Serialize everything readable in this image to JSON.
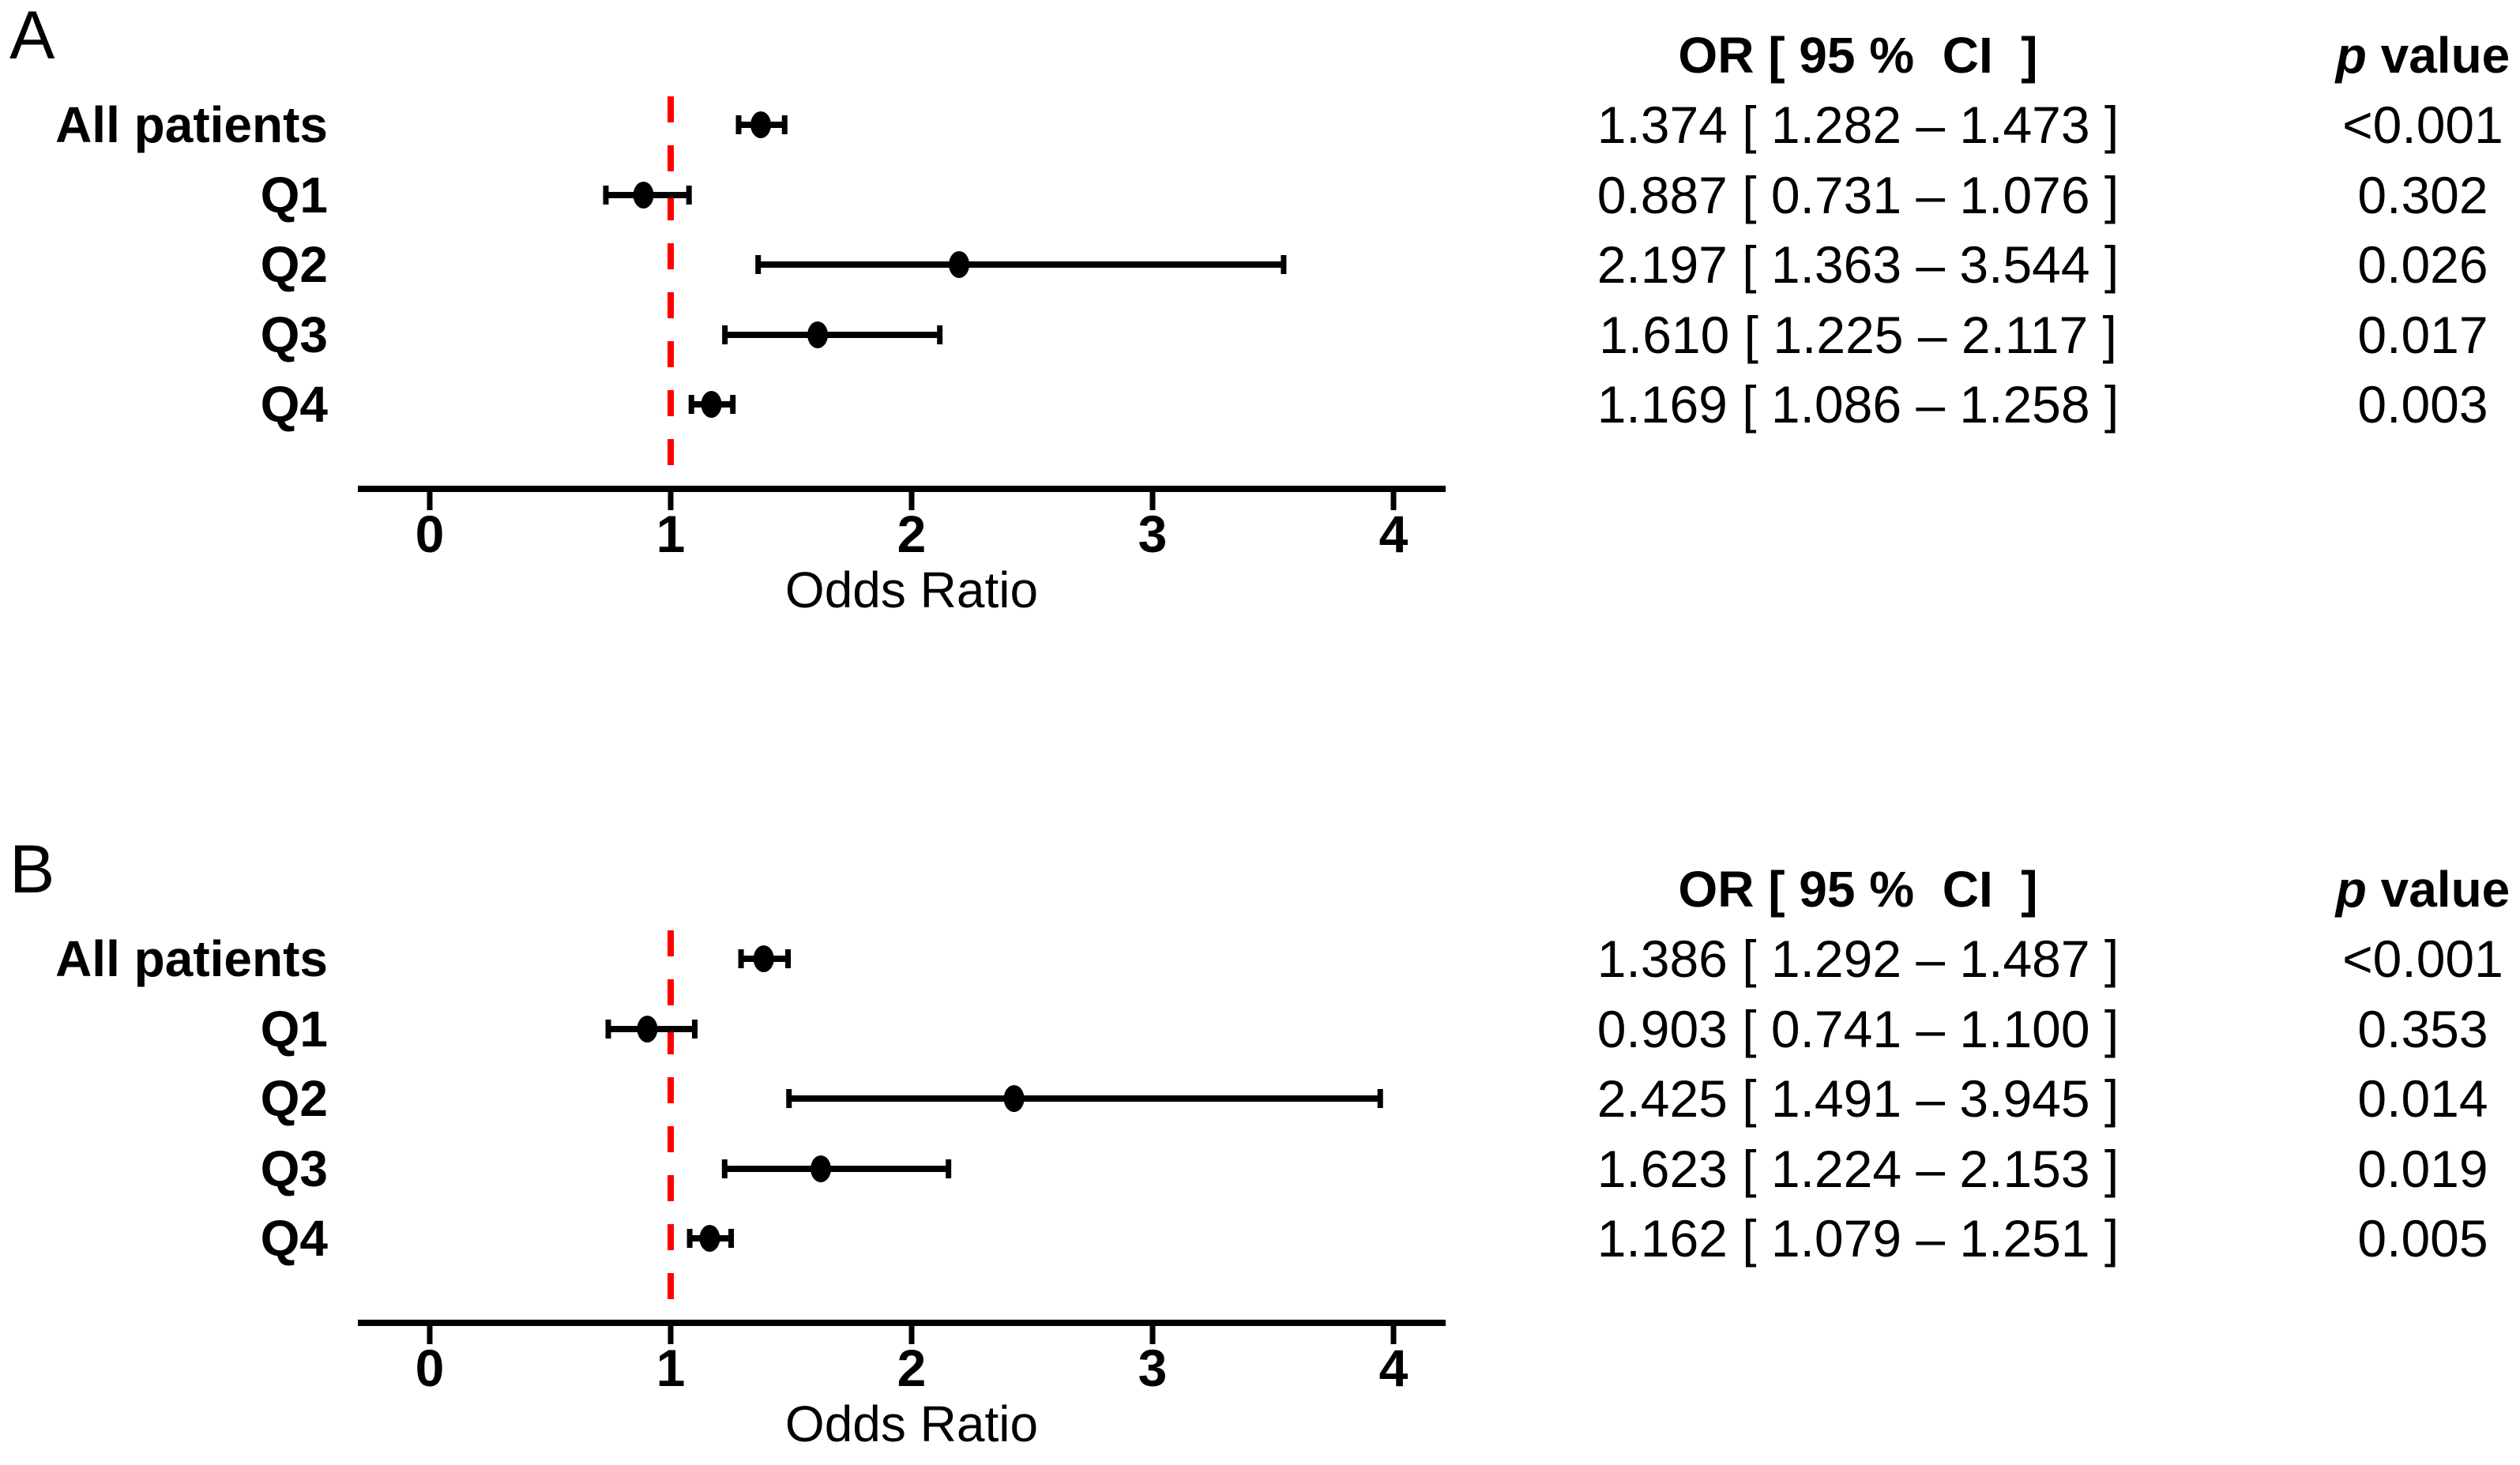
{
  "figure_title": "",
  "chart_data": [
    {
      "type": "forest",
      "panel_label": "A",
      "xlabel": "Odds Ratio",
      "xticks": [
        0,
        1,
        2,
        3,
        4
      ],
      "xlim": [
        -0.3,
        4.22
      ],
      "grid": false,
      "ref_line_x": 1,
      "ref_line_color": "#ff0000",
      "marker_color": "#000000",
      "col_header_or": "OR [ 95 %  CI  ]",
      "col_header_p_italic": "p",
      "col_header_p_rest": " value",
      "categories": [
        "All patients",
        "Q1",
        "Q2",
        "Q3",
        "Q4"
      ],
      "series": [
        {
          "name": "OR",
          "values": [
            1.374,
            0.887,
            2.197,
            1.61,
            1.169
          ]
        },
        {
          "name": "CI low",
          "values": [
            1.282,
            0.731,
            1.363,
            1.225,
            1.086
          ]
        },
        {
          "name": "CI high",
          "values": [
            1.473,
            1.076,
            3.544,
            2.117,
            1.258
          ]
        }
      ],
      "or_ci_text": [
        "1.374 [ 1.282 – 1.473 ]",
        "0.887 [ 0.731 – 1.076 ]",
        "2.197 [ 1.363 – 3.544 ]",
        "1.610 [ 1.225 – 2.117 ]",
        "1.169 [ 1.086 – 1.258 ]"
      ],
      "p_values": [
        "<0.001",
        "0.302",
        "0.026",
        "0.017",
        "0.003"
      ]
    },
    {
      "type": "forest",
      "panel_label": "B",
      "xlabel": "Odds Ratio",
      "xticks": [
        0,
        1,
        2,
        3,
        4
      ],
      "xlim": [
        -0.3,
        4.22
      ],
      "grid": false,
      "ref_line_x": 1,
      "ref_line_color": "#ff0000",
      "marker_color": "#000000",
      "col_header_or": "OR [ 95 %  CI  ]",
      "col_header_p_italic": "p",
      "col_header_p_rest": " value",
      "categories": [
        "All patients",
        "Q1",
        "Q2",
        "Q3",
        "Q4"
      ],
      "series": [
        {
          "name": "OR",
          "values": [
            1.386,
            0.903,
            2.425,
            1.623,
            1.162
          ]
        },
        {
          "name": "CI low",
          "values": [
            1.292,
            0.741,
            1.491,
            1.224,
            1.079
          ]
        },
        {
          "name": "CI high",
          "values": [
            1.487,
            1.1,
            3.945,
            2.153,
            1.251
          ]
        }
      ],
      "or_ci_text": [
        "1.386 [ 1.292 – 1.487 ]",
        "0.903 [ 0.741 – 1.100 ]",
        "2.425 [ 1.491 – 3.945 ]",
        "1.623 [ 1.224 – 2.153 ]",
        "1.162 [ 1.079 – 1.251 ]"
      ],
      "p_values": [
        "<0.001",
        "0.353",
        "0.014",
        "0.019",
        "0.005"
      ]
    }
  ]
}
